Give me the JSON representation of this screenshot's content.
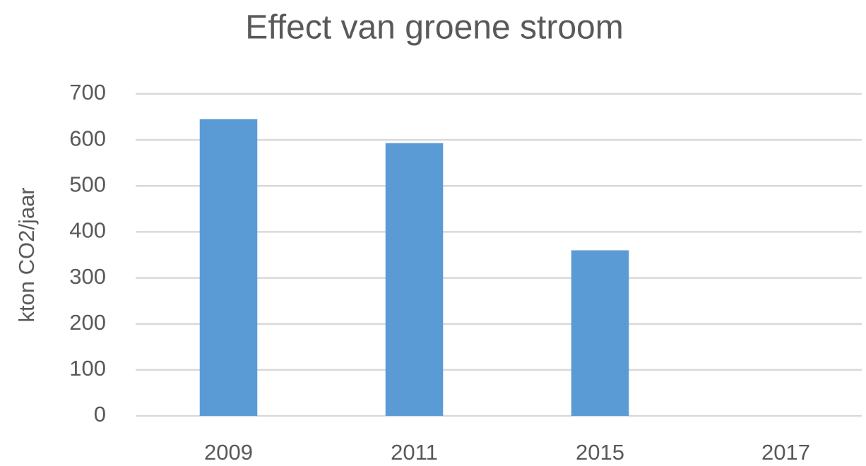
{
  "chart_data": {
    "type": "bar",
    "title": "Effect van groene stroom",
    "y_label": "kton CO2/jaar",
    "categories": [
      "2009",
      "2011",
      "2015",
      "2017"
    ],
    "values": [
      645,
      593,
      360,
      0
    ],
    "color": "#5b9bd5",
    "ylim": [
      0,
      700
    ],
    "yticks": [
      0,
      100,
      200,
      300,
      400,
      500,
      600,
      700
    ],
    "grid": true
  }
}
